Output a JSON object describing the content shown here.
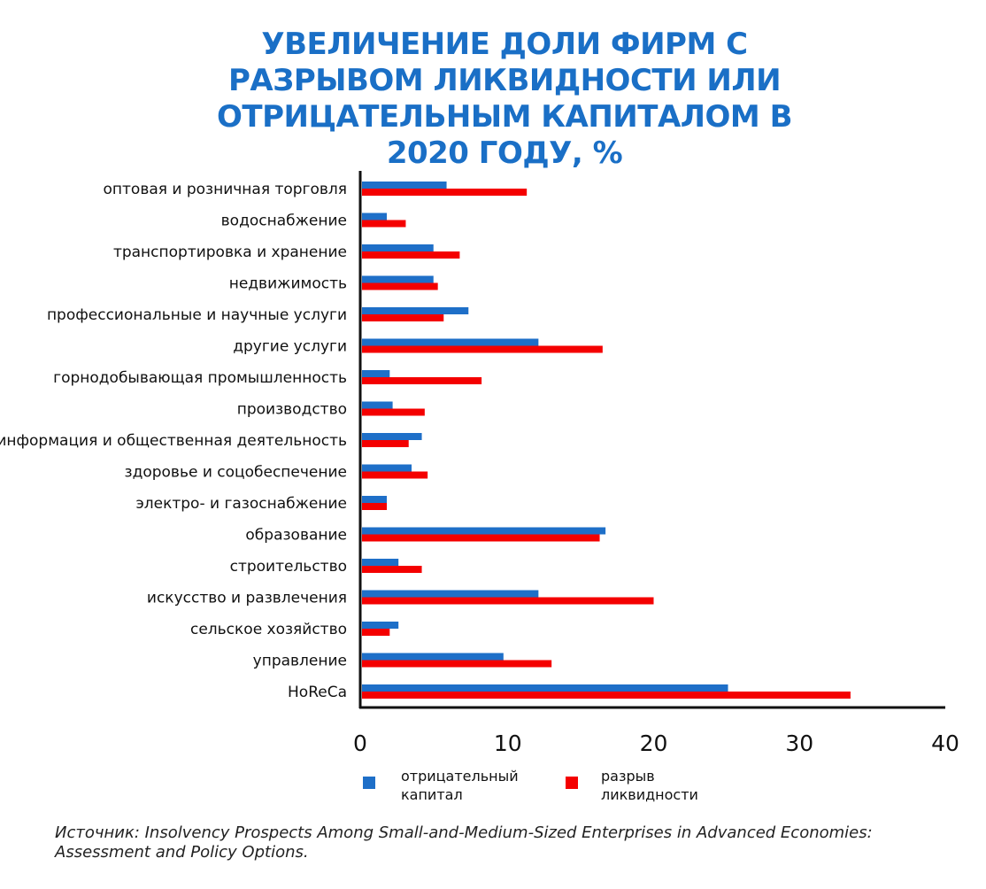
{
  "chart_data": {
    "type": "bar",
    "orientation": "horizontal",
    "title": "УВЕЛИЧЕНИЕ ДОЛИ ФИРМ С РАЗРЫВОМ ЛИКВИДНОСТИ ИЛИ ОТРИЦАТЕЛЬНЫМ КАПИТАЛОМ В 2020 ГОДУ, %",
    "categories": [
      "оптовая и розничная торговля",
      "водоснабжение",
      "транспортировка и хранение",
      "недвижимость",
      "профессиональные и научные услуги",
      "другие услуги",
      "горнодобывающая промышленность",
      "производство",
      "информация и общественная деятельность",
      "здоровье и соцобеспечение",
      "электро- и газоснабжение",
      "образование",
      "строительство",
      "искусство и развлечения",
      "сельское хозяйство",
      "управление",
      "HoReCa"
    ],
    "series": [
      {
        "name": "отрицательный капитал",
        "name_lines": [
          "отрицательный",
          "капитал"
        ],
        "color": "#1e6fc8",
        "values": [
          5.8,
          1.7,
          4.9,
          4.9,
          7.3,
          12.1,
          1.9,
          2.1,
          4.1,
          3.4,
          1.7,
          16.7,
          2.5,
          12.1,
          2.5,
          9.7,
          25.1
        ]
      },
      {
        "name": "разрыв ликвидности",
        "name_lines": [
          "разрыв",
          "ликвидности"
        ],
        "color": "#f40000",
        "values": [
          11.3,
          3.0,
          6.7,
          5.2,
          5.6,
          16.5,
          8.2,
          4.3,
          3.2,
          4.5,
          1.7,
          16.3,
          4.1,
          20.0,
          1.9,
          13.0,
          33.5
        ]
      }
    ],
    "xlim": [
      0,
      40
    ],
    "xticks": [
      "0",
      "10",
      "20",
      "30",
      "40"
    ],
    "xlabel": "",
    "ylabel": "",
    "grid": false,
    "legend_position": "bottom"
  },
  "source_note": "Источник: Insolvency Prospects Among Small-and-Medium-Sized Enterprises in Advanced Economies: Assessment and Policy Options."
}
